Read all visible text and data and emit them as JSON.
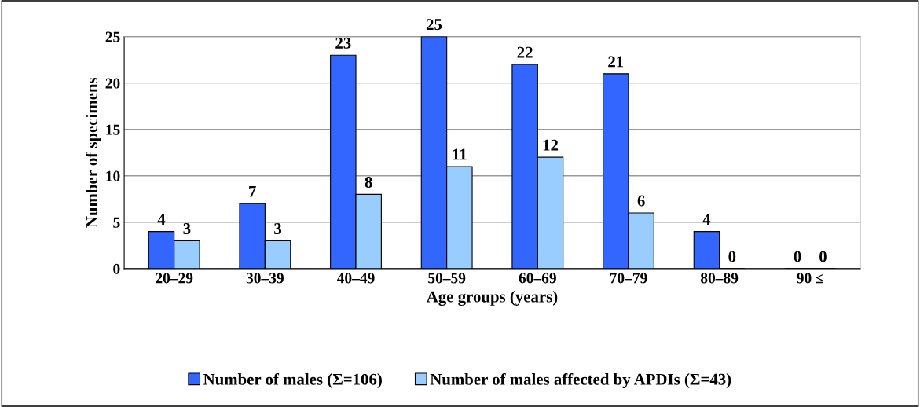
{
  "chart_data": {
    "type": "bar",
    "xlabel": "Age groups (years)",
    "ylabel": "Number of specimens",
    "categories": [
      "20–29",
      "30–39",
      "40–49",
      "50–59",
      "60–69",
      "70–79",
      "80–89",
      "90 ≤"
    ],
    "series": [
      {
        "name": "Number of males (Σ=106)",
        "color": "#3366ff",
        "values": [
          4,
          7,
          23,
          25,
          22,
          21,
          4,
          0
        ]
      },
      {
        "name": "Number of males affected by APDIs (Σ=43)",
        "color": "#99ccff",
        "values": [
          3,
          3,
          8,
          11,
          12,
          6,
          0,
          0
        ]
      }
    ],
    "ylim": [
      0,
      25
    ],
    "yticks": [
      0,
      5,
      10,
      15,
      20,
      25
    ],
    "grid": "y",
    "legend": "bottom",
    "data_labels": true
  }
}
